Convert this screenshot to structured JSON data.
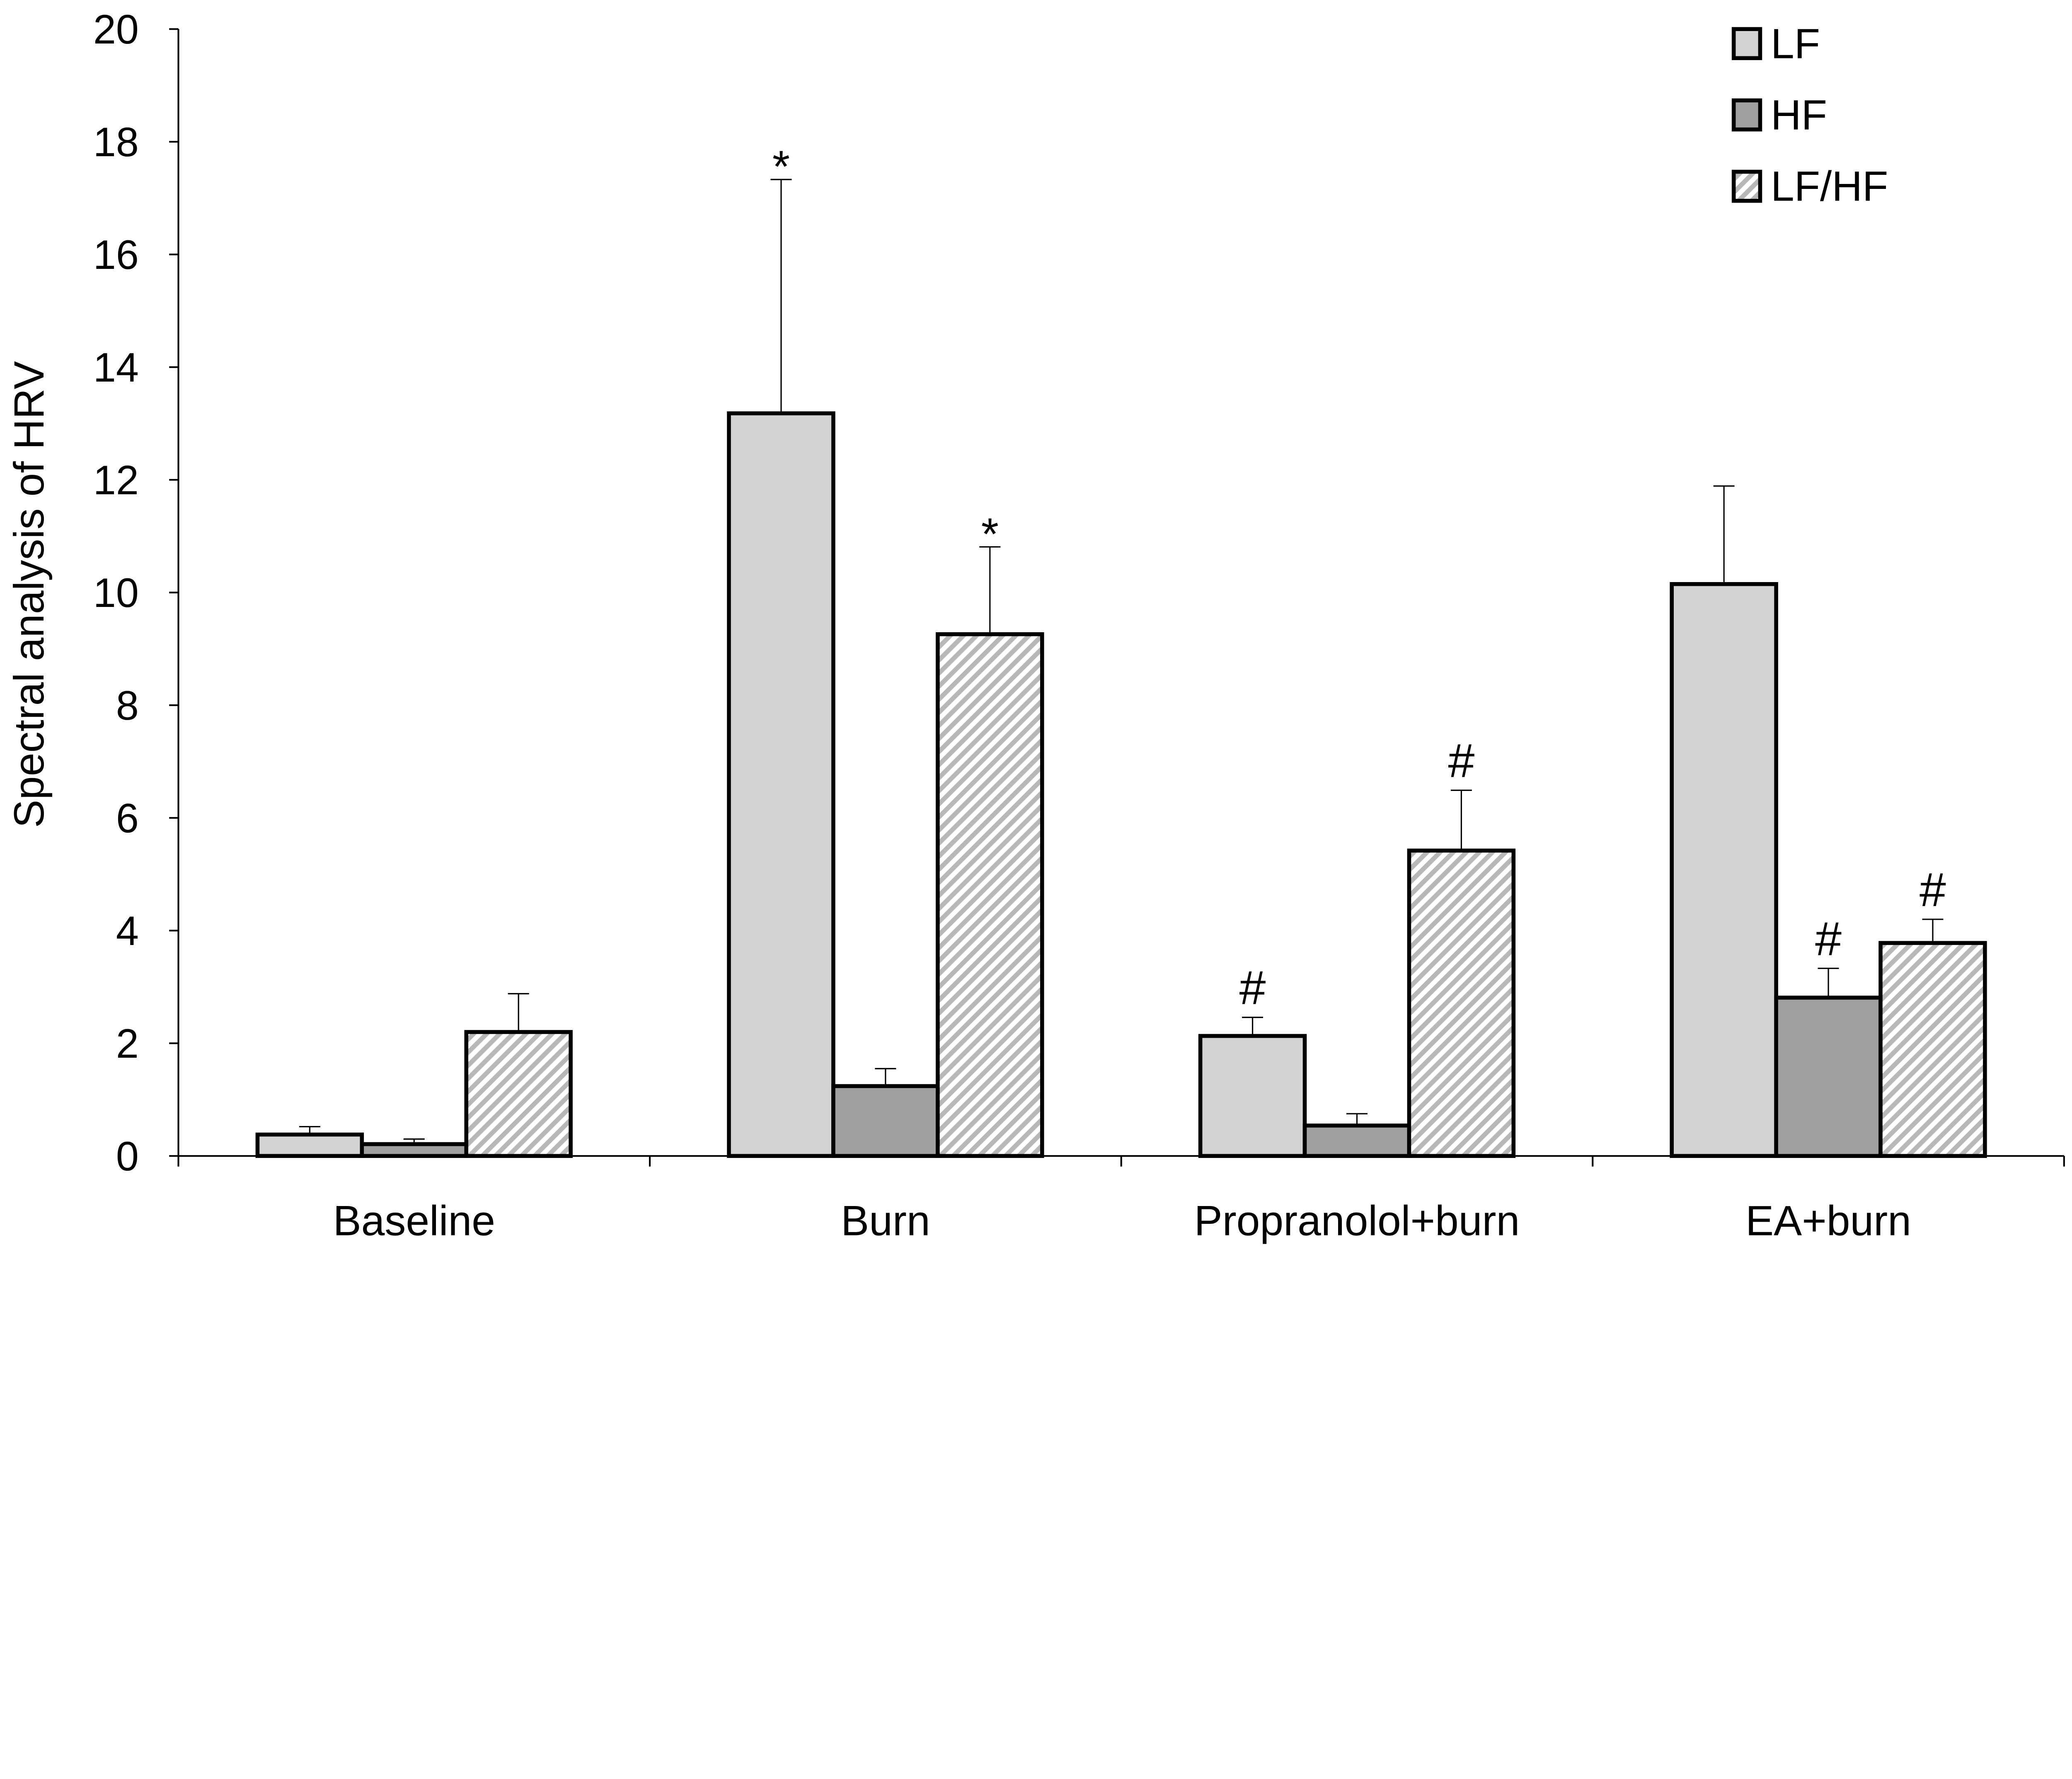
{
  "chart_data": {
    "type": "bar",
    "title": "",
    "xlabel": "",
    "ylabel": "Spectral analysis of HRV",
    "ylim": [
      0,
      20
    ],
    "yticks": [
      "0",
      "2",
      "4",
      "6",
      "8",
      "10",
      "12",
      "14",
      "16",
      "18",
      "20"
    ],
    "grid": false,
    "legend_placement": "top-right",
    "categories": [
      "Baseline",
      "Burn",
      "Propranolol+burn",
      "EA+burn"
    ],
    "series": [
      {
        "name": "LF",
        "fill": "#d3d3d3",
        "pattern": "solid",
        "values": [
          0.38,
          13.18,
          2.13,
          10.15
        ],
        "error": [
          0.14,
          4.15,
          0.33,
          1.74
        ],
        "annotations": [
          "",
          "*",
          "#",
          ""
        ]
      },
      {
        "name": "HF",
        "fill": "#a0a0a0",
        "pattern": "solid",
        "values": [
          0.21,
          1.24,
          0.54,
          2.81
        ],
        "error": [
          0.09,
          0.31,
          0.21,
          0.52
        ],
        "annotations": [
          "",
          "",
          "",
          "#"
        ]
      },
      {
        "name": "LF/HF",
        "fill": "#c8c8c8",
        "pattern": "diagonal-hatch",
        "values": [
          2.2,
          9.26,
          5.42,
          3.78
        ],
        "error": [
          0.68,
          1.55,
          1.07,
          0.42
        ],
        "annotations": [
          "",
          "*",
          "#",
          "#"
        ]
      }
    ]
  }
}
